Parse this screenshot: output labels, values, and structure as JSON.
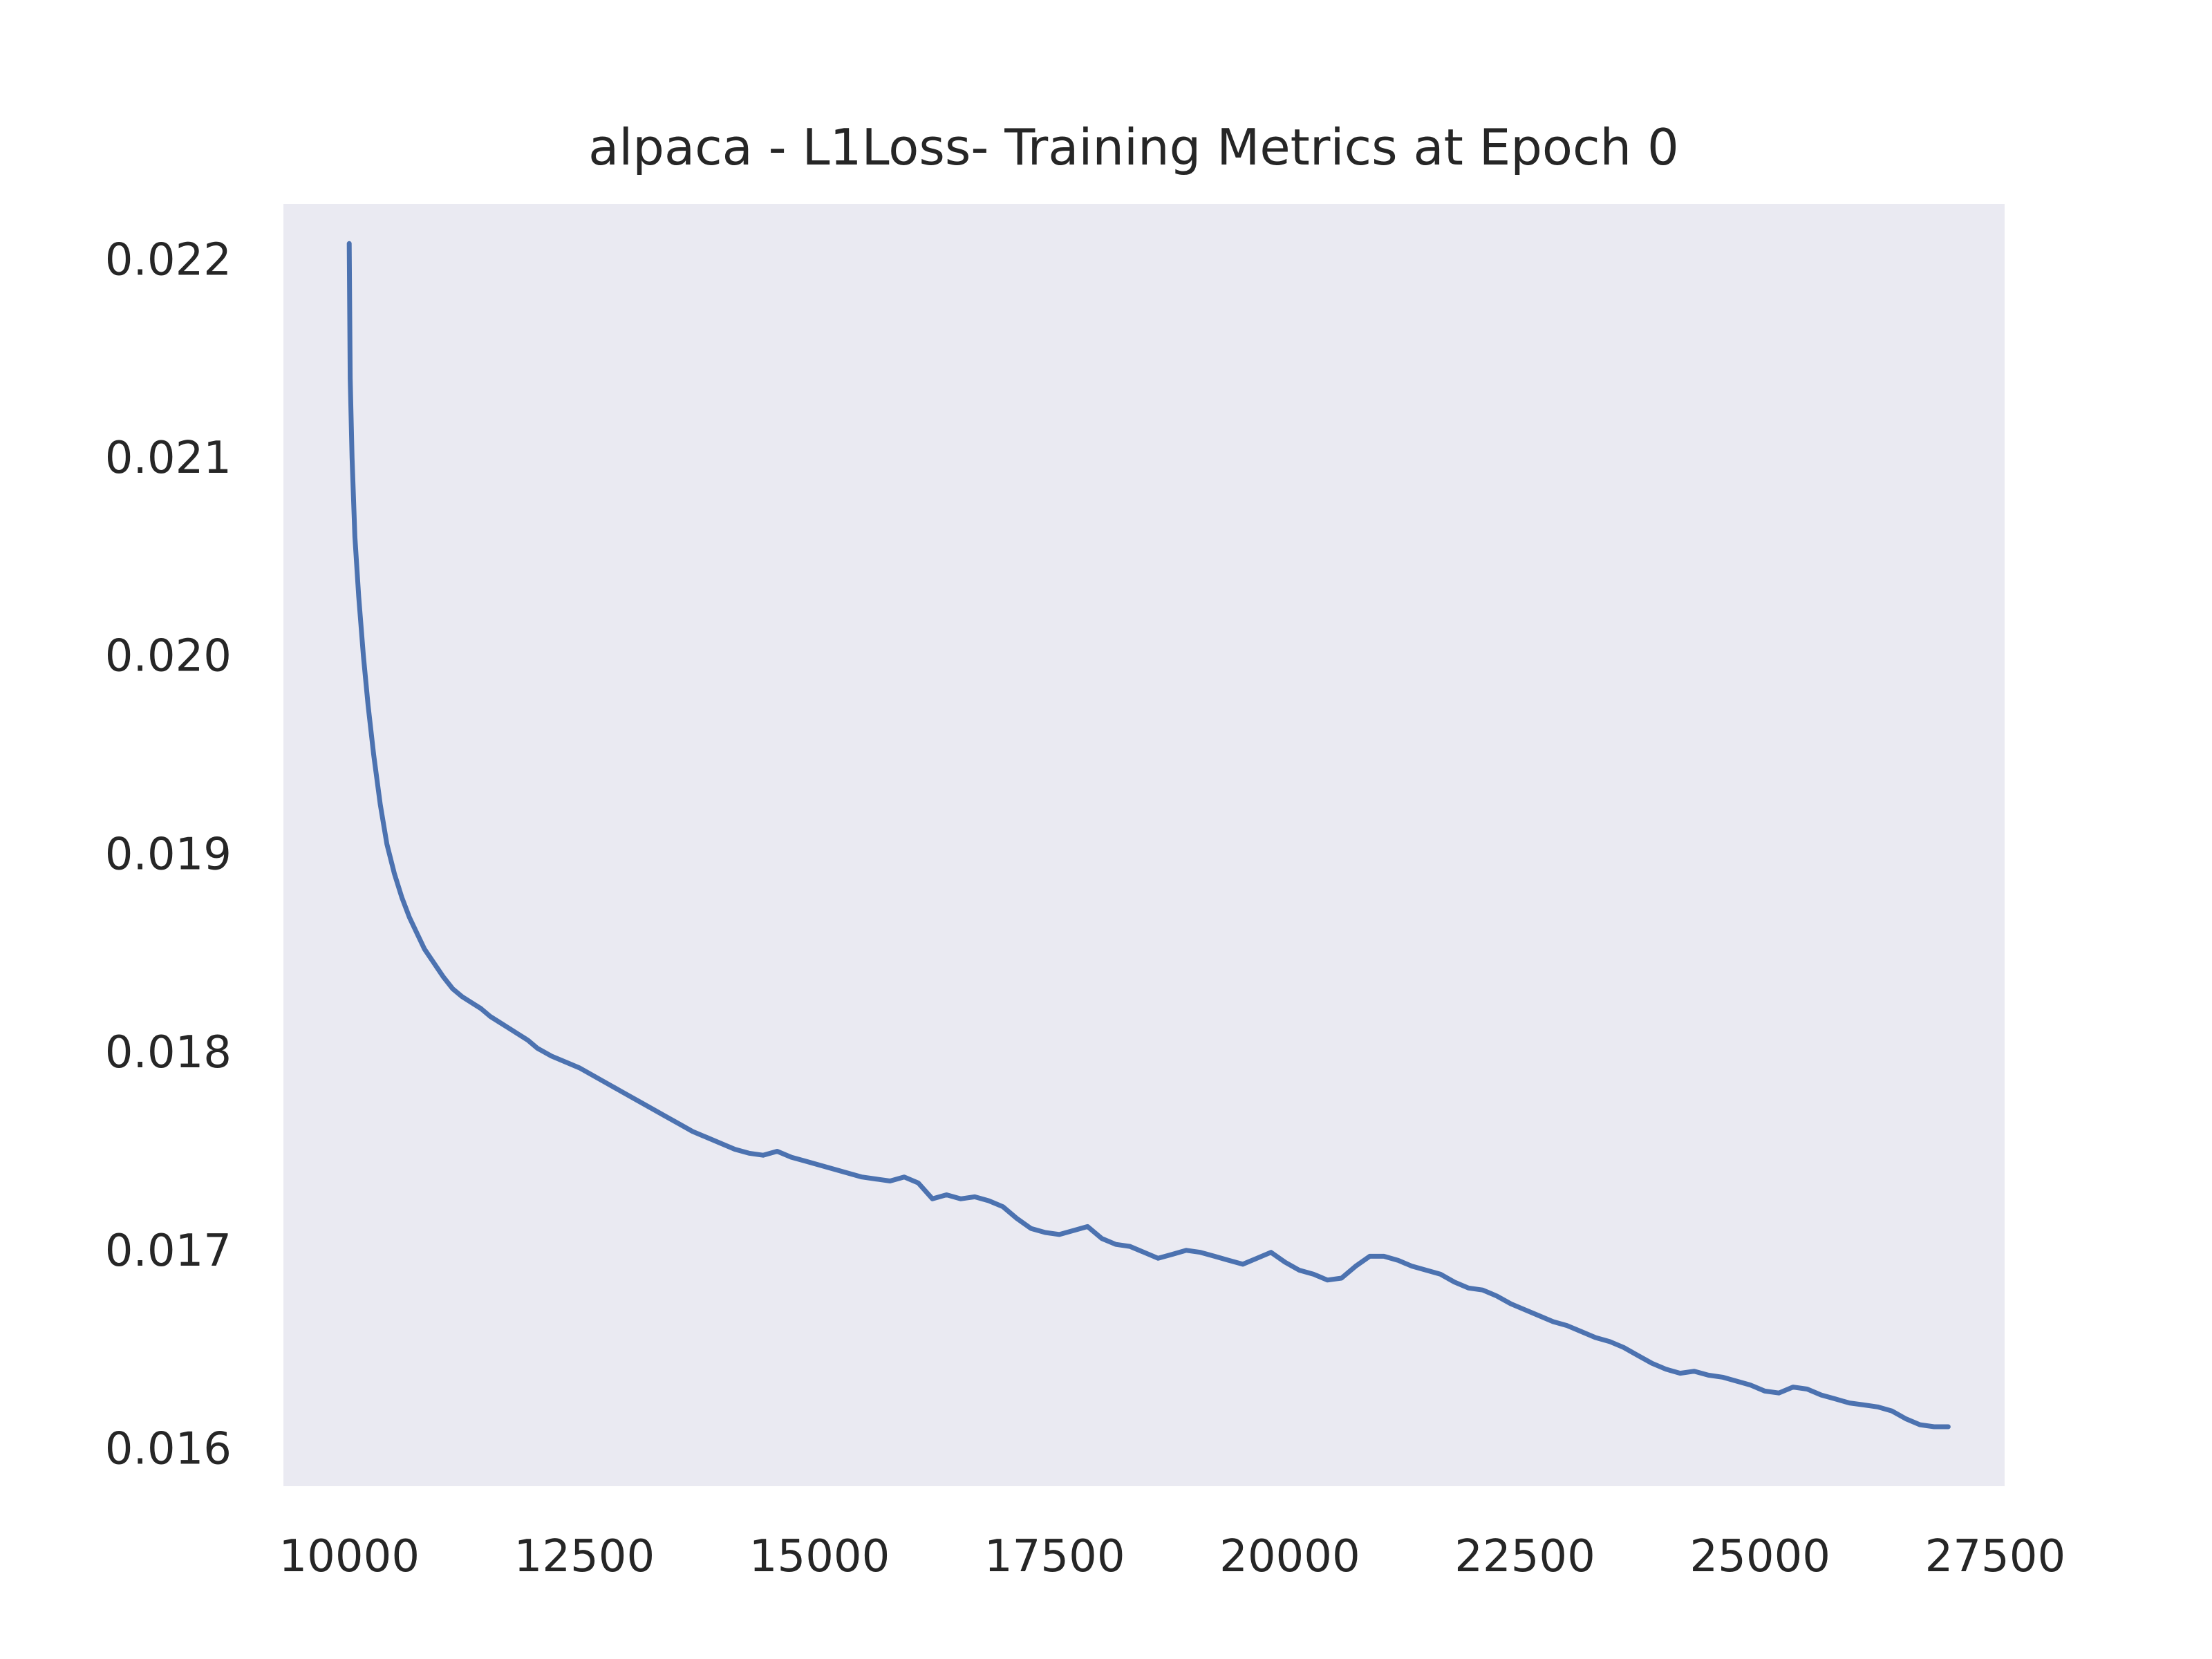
{
  "chart_data": {
    "type": "line",
    "title": "alpaca - L1Loss- Training Metrics at Epoch 0",
    "xlabel": "",
    "ylabel": "",
    "xlim": [
      9300,
      27600
    ],
    "ylim": [
      0.01581,
      0.02228
    ],
    "xticks": [
      10000,
      12500,
      15000,
      17500,
      20000,
      22500,
      25000,
      27500
    ],
    "xtick_labels": [
      "10000",
      "12500",
      "15000",
      "17500",
      "20000",
      "22500",
      "25000",
      "27500"
    ],
    "yticks": [
      0.016,
      0.017,
      0.018,
      0.019,
      0.02,
      0.021,
      0.022
    ],
    "ytick_labels": [
      "0.016",
      "0.017",
      "0.018",
      "0.019",
      "0.020",
      "0.021",
      "0.022"
    ],
    "grid": false,
    "background_color": "#eaeaf2",
    "series": [
      {
        "color": "#4c72b0",
        "x": [
          10000,
          10010,
          10030,
          10060,
          10100,
          10150,
          10200,
          10260,
          10330,
          10400,
          10480,
          10560,
          10640,
          10720,
          10800,
          10900,
          11000,
          11100,
          11200,
          11300,
          11400,
          11500,
          11600,
          11700,
          11800,
          11900,
          12000,
          12150,
          12300,
          12450,
          12600,
          12750,
          12900,
          13050,
          13200,
          13350,
          13500,
          13650,
          13800,
          13950,
          14100,
          14250,
          14400,
          14550,
          14700,
          14850,
          15000,
          15150,
          15300,
          15450,
          15600,
          15750,
          15900,
          16050,
          16200,
          16350,
          16500,
          16650,
          16800,
          16950,
          17100,
          17250,
          17400,
          17550,
          17700,
          17850,
          18000,
          18150,
          18300,
          18450,
          18600,
          18750,
          18900,
          19050,
          19200,
          19350,
          19500,
          19650,
          19800,
          19950,
          20100,
          20250,
          20400,
          20550,
          20700,
          20850,
          21000,
          21150,
          21300,
          21450,
          21600,
          21750,
          21900,
          22050,
          22200,
          22350,
          22500,
          22650,
          22800,
          22950,
          23100,
          23250,
          23400,
          23550,
          23700,
          23850,
          24000,
          24150,
          24300,
          24450,
          24600,
          24750,
          24900,
          25050,
          25200,
          25350,
          25500,
          25650,
          25800,
          25950,
          26100,
          26250,
          26400,
          26550,
          26700,
          26850,
          27000
        ],
        "y": [
          0.02208,
          0.0214,
          0.021,
          0.0206,
          0.0203,
          0.02,
          0.01975,
          0.0195,
          0.01925,
          0.01905,
          0.0189,
          0.01878,
          0.01868,
          0.0186,
          0.01852,
          0.01845,
          0.01838,
          0.01832,
          0.01828,
          0.01825,
          0.01822,
          0.01818,
          0.01815,
          0.01812,
          0.01809,
          0.01806,
          0.01802,
          0.01798,
          0.01795,
          0.01792,
          0.01788,
          0.01784,
          0.0178,
          0.01776,
          0.01772,
          0.01768,
          0.01764,
          0.0176,
          0.01757,
          0.01754,
          0.01751,
          0.01749,
          0.01748,
          0.0175,
          0.01747,
          0.01745,
          0.01743,
          0.01741,
          0.01739,
          0.01737,
          0.01736,
          0.01735,
          0.01737,
          0.01734,
          0.01726,
          0.01728,
          0.01726,
          0.01727,
          0.01725,
          0.01722,
          0.01716,
          0.01711,
          0.01709,
          0.01708,
          0.0171,
          0.01712,
          0.01706,
          0.01703,
          0.01702,
          0.01699,
          0.01696,
          0.01698,
          0.017,
          0.01699,
          0.01697,
          0.01695,
          0.01693,
          0.01696,
          0.01699,
          0.01694,
          0.0169,
          0.01688,
          0.01685,
          0.01686,
          0.01692,
          0.01697,
          0.01697,
          0.01695,
          0.01692,
          0.0169,
          0.01688,
          0.01684,
          0.01681,
          0.0168,
          0.01677,
          0.01673,
          0.0167,
          0.01667,
          0.01664,
          0.01662,
          0.01659,
          0.01656,
          0.01654,
          0.01651,
          0.01647,
          0.01643,
          0.0164,
          0.01638,
          0.01639,
          0.01637,
          0.01636,
          0.01634,
          0.01632,
          0.01629,
          0.01628,
          0.01631,
          0.0163,
          0.01627,
          0.01625,
          0.01623,
          0.01622,
          0.01621,
          0.01619,
          0.01615,
          0.01612,
          0.01611,
          0.01611
        ]
      }
    ]
  }
}
